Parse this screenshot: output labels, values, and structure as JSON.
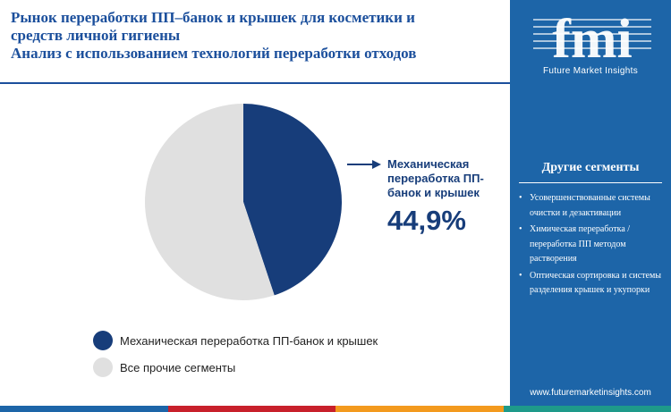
{
  "header": {
    "title_lines": [
      "Рынок переработки ПП‒банок и крышек для косметики и",
      "средств личной гигиены",
      "Анализ с использованием технологий переработки отходов"
    ]
  },
  "chart_data": {
    "type": "pie",
    "title": "Анализ с использованием технологий переработки отходов",
    "slices": [
      {
        "label": "Механическая переработка ПП-банок и крышек",
        "value": 44.9,
        "color": "#173d7a"
      },
      {
        "label": "Все прочие сегменты",
        "value": 55.1,
        "color": "#e0e0e0"
      }
    ],
    "legend_position": "bottom-left",
    "callout": {
      "label": "Механическая переработка ПП-банок и крышек",
      "value_text": "44,9%"
    }
  },
  "sidebar": {
    "logo_letters": "fmi",
    "logo_subtitle": "Future Market Insights",
    "other_title": "Другие сегменты",
    "bullet_glyph": "•",
    "items": [
      "Усовершенствованные системы очистки и дезактивации",
      "Химическая переработка / переработка ПП методом растворения",
      "Оптическая сортировка и системы разделения крышек и укупорки"
    ],
    "website": "www.futuremarketinsights.com",
    "background": "#1d65a8"
  },
  "footer": {
    "colors": [
      "#1d65a8",
      "#c8202b",
      "#f39a1e",
      "#1e9a8a"
    ]
  }
}
